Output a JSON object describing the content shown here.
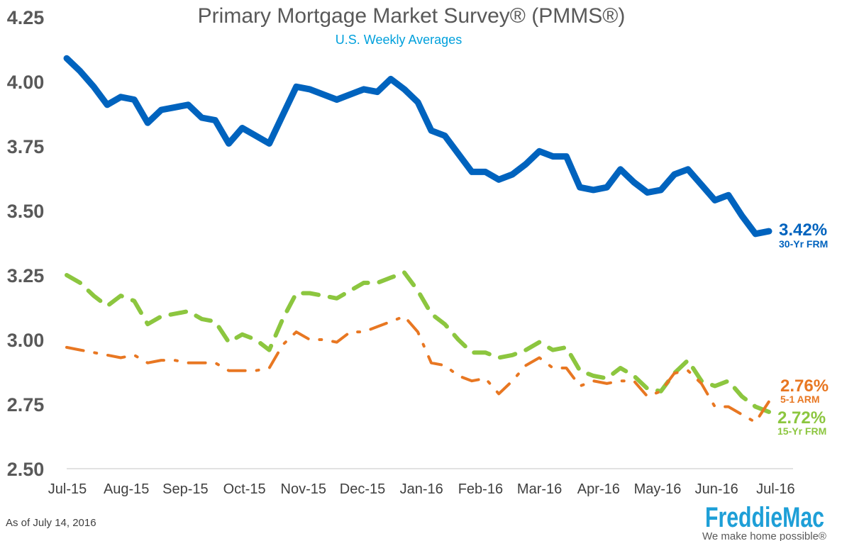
{
  "chart_data": {
    "type": "line",
    "title": "Primary Mortgage Market Survey® (PMMS®)",
    "subtitle": "U.S. Weekly Averages",
    "xlabel": "",
    "ylabel": "",
    "ylim": [
      2.5,
      4.25
    ],
    "yticks": [
      "4.25",
      "4.00",
      "3.75",
      "3.50",
      "3.25",
      "3.00",
      "2.75",
      "2.50"
    ],
    "xticks": [
      "Jul-15",
      "Aug-15",
      "Sep-15",
      "Oct-15",
      "Nov-15",
      "Dec-15",
      "Jan-16",
      "Feb-16",
      "Mar-16",
      "Apr-16",
      "May-16",
      "Jun-16",
      "Jul-16"
    ],
    "grid": false,
    "series": [
      {
        "key": "frm30",
        "name": "30-Yr FRM",
        "end_label": "3.42%",
        "color": "#0063be",
        "style": "solid",
        "values": [
          4.09,
          4.04,
          3.98,
          3.91,
          3.94,
          3.93,
          3.84,
          3.89,
          3.9,
          3.91,
          3.86,
          3.85,
          3.76,
          3.82,
          3.79,
          3.76,
          3.87,
          3.98,
          3.97,
          3.95,
          3.93,
          3.95,
          3.97,
          3.96,
          4.01,
          3.97,
          3.92,
          3.81,
          3.79,
          3.72,
          3.65,
          3.65,
          3.62,
          3.64,
          3.68,
          3.73,
          3.71,
          3.71,
          3.59,
          3.58,
          3.59,
          3.66,
          3.61,
          3.57,
          3.58,
          3.64,
          3.66,
          3.6,
          3.54,
          3.56,
          3.48,
          3.41,
          3.42
        ]
      },
      {
        "key": "frm15",
        "name": "15-Yr FRM",
        "end_label": "2.72%",
        "color": "#8cc63f",
        "style": "dashed",
        "values": [
          3.25,
          3.22,
          3.17,
          3.13,
          3.17,
          3.15,
          3.06,
          3.09,
          3.1,
          3.11,
          3.08,
          3.07,
          2.99,
          3.02,
          3.0,
          2.96,
          3.08,
          3.18,
          3.18,
          3.17,
          3.16,
          3.19,
          3.22,
          3.22,
          3.24,
          3.26,
          3.19,
          3.1,
          3.06,
          3.0,
          2.95,
          2.95,
          2.93,
          2.94,
          2.96,
          2.99,
          2.96,
          2.97,
          2.88,
          2.86,
          2.85,
          2.89,
          2.86,
          2.81,
          2.8,
          2.87,
          2.92,
          2.84,
          2.82,
          2.84,
          2.78,
          2.74,
          2.72
        ]
      },
      {
        "key": "arm51",
        "name": "5-1 ARM",
        "end_label": "2.76%",
        "color": "#e87722",
        "style": "dashdot",
        "values": [
          2.97,
          2.96,
          2.95,
          2.94,
          2.93,
          2.94,
          2.91,
          2.92,
          2.92,
          2.91,
          2.91,
          2.91,
          2.88,
          2.88,
          2.88,
          2.89,
          2.98,
          3.03,
          3.0,
          3.0,
          2.99,
          3.03,
          3.03,
          3.05,
          3.07,
          3.09,
          3.03,
          2.91,
          2.9,
          2.86,
          2.84,
          2.85,
          2.79,
          2.84,
          2.9,
          2.93,
          2.89,
          2.89,
          2.82,
          2.84,
          2.83,
          2.84,
          2.84,
          2.78,
          2.8,
          2.87,
          2.88,
          2.83,
          2.74,
          2.74,
          2.71,
          2.68,
          2.76
        ]
      }
    ]
  },
  "footnote": "As of July 14, 2016",
  "logo": {
    "name": "FreddieMac",
    "tagline": "We make home possible®",
    "color": "#1e9fd7"
  }
}
